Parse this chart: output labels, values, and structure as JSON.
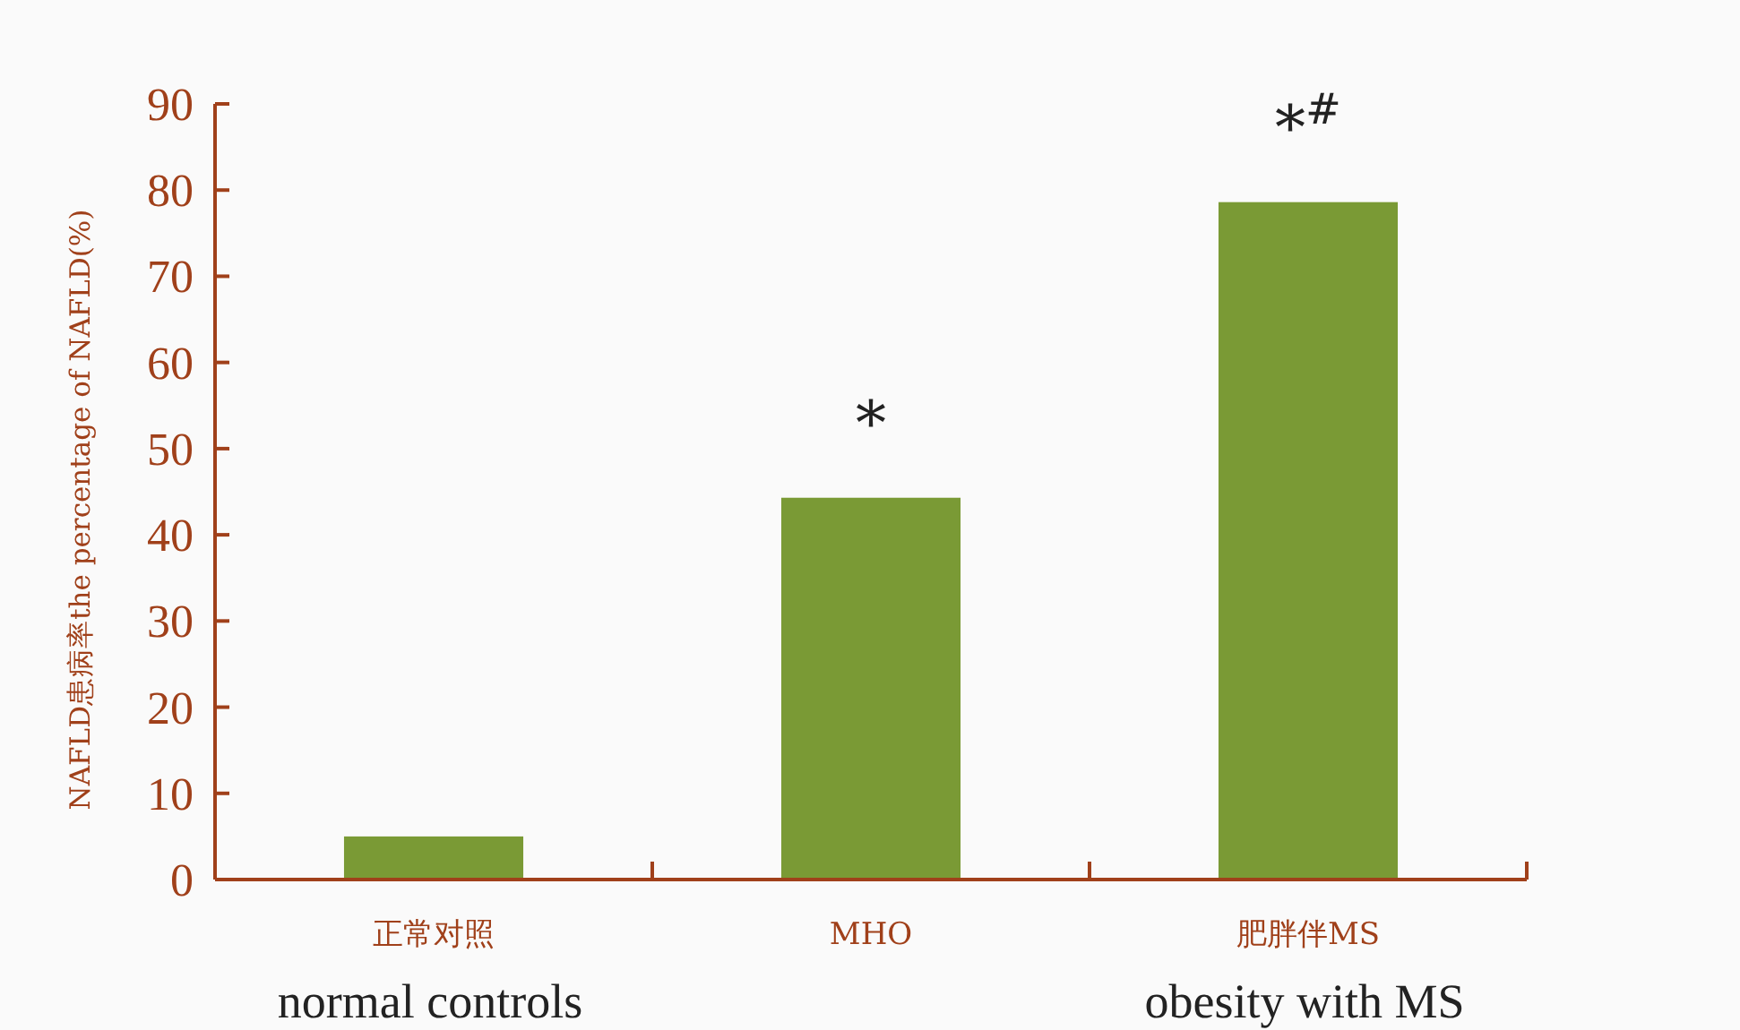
{
  "chart_data": {
    "type": "bar",
    "ylabel": "NAFLD患病率the percentage of NAFLD(%)",
    "categories": [
      "正常对照\nnormal controls",
      "MHO",
      "肥胖伴MS\nobesity with MS"
    ],
    "values": [
      5.0,
      44.3,
      78.6
    ],
    "color": "#7a9a35",
    "ylim": [
      0,
      90
    ],
    "yticks": [
      0,
      10,
      20,
      30,
      40,
      50,
      60,
      70,
      80,
      90
    ],
    "annotations": [
      {
        "text": "*",
        "x": "MHO",
        "y": 44.3
      },
      {
        "text": "*$^{#}$",
        "x": "肥胖伴MS\nobesity with MS",
        "y": 78.6
      }
    ]
  }
}
